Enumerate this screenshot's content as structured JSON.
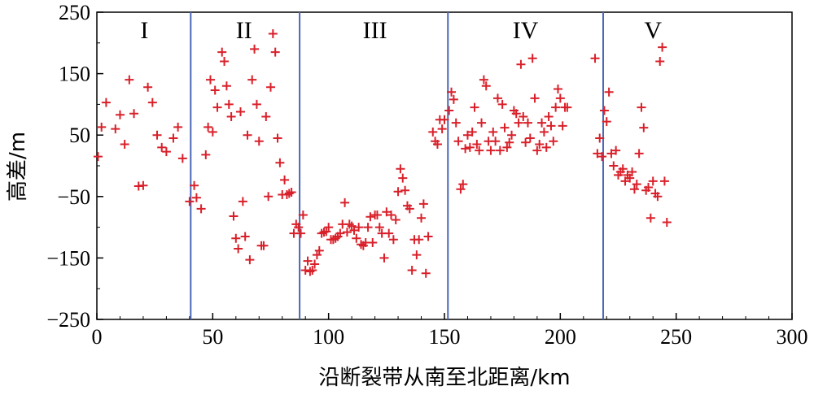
{
  "chart_data": {
    "type": "scatter",
    "xlabel": "沿断裂带从南至北距离/km",
    "ylabel": "高差/m",
    "xlim": [
      0,
      300
    ],
    "ylim": [
      -250,
      250
    ],
    "xticks": [
      "0",
      "50",
      "100",
      "150",
      "200",
      "250",
      "300"
    ],
    "yticks": [
      "250",
      "150",
      "50",
      "−50",
      "−150",
      "−250"
    ],
    "grid": false,
    "marker": "+",
    "marker_color": "#d9202a",
    "divider_color": "#4a67b8",
    "dividers": [
      40.5,
      87.5,
      151.5,
      218.5
    ],
    "regions": [
      {
        "label": "I",
        "x": 20.5
      },
      {
        "label": "II",
        "x": 63.5
      },
      {
        "label": "III",
        "x": 120
      },
      {
        "label": "IV",
        "x": 185
      },
      {
        "label": "V",
        "x": 240
      }
    ],
    "points": [
      [
        0.5,
        15
      ],
      [
        2,
        63
      ],
      [
        4,
        103
      ],
      [
        8,
        60
      ],
      [
        10,
        83
      ],
      [
        12,
        35
      ],
      [
        14,
        140
      ],
      [
        16,
        85
      ],
      [
        18,
        -33
      ],
      [
        20,
        -32
      ],
      [
        22,
        128
      ],
      [
        24,
        103
      ],
      [
        26,
        50
      ],
      [
        28,
        30
      ],
      [
        30,
        23
      ],
      [
        33,
        45
      ],
      [
        35,
        63
      ],
      [
        37,
        12
      ],
      [
        40,
        -58
      ],
      [
        42,
        -32
      ],
      [
        43,
        -52
      ],
      [
        45,
        -70
      ],
      [
        47,
        18
      ],
      [
        48,
        63
      ],
      [
        49,
        140
      ],
      [
        50,
        55
      ],
      [
        51,
        123
      ],
      [
        52,
        95
      ],
      [
        54,
        185
      ],
      [
        55,
        170
      ],
      [
        56,
        130
      ],
      [
        57,
        100
      ],
      [
        58,
        80
      ],
      [
        59,
        -82
      ],
      [
        60,
        -118
      ],
      [
        61,
        -135
      ],
      [
        62,
        88
      ],
      [
        63,
        -58
      ],
      [
        64,
        -115
      ],
      [
        65,
        50
      ],
      [
        66,
        -153
      ],
      [
        67,
        140
      ],
      [
        68,
        190
      ],
      [
        69,
        100
      ],
      [
        70,
        40
      ],
      [
        71,
        -130
      ],
      [
        72,
        -130
      ],
      [
        73,
        80
      ],
      [
        74,
        -50
      ],
      [
        75,
        128
      ],
      [
        76,
        215
      ],
      [
        77,
        185
      ],
      [
        78,
        45
      ],
      [
        79,
        5
      ],
      [
        80,
        -47
      ],
      [
        81,
        -23
      ],
      [
        82,
        -47
      ],
      [
        83,
        -45
      ],
      [
        84,
        -43
      ],
      [
        85,
        -110
      ],
      [
        86,
        -95
      ],
      [
        87,
        -100
      ],
      [
        88,
        -110
      ],
      [
        89,
        -80
      ],
      [
        90,
        -170
      ],
      [
        91,
        -155
      ],
      [
        92,
        -172
      ],
      [
        93,
        -170
      ],
      [
        94,
        -160
      ],
      [
        95,
        -145
      ],
      [
        96,
        -138
      ],
      [
        97,
        -110
      ],
      [
        98,
        -108
      ],
      [
        99,
        -107
      ],
      [
        100,
        -100
      ],
      [
        101,
        -120
      ],
      [
        102,
        -120
      ],
      [
        103,
        -118
      ],
      [
        104,
        -115
      ],
      [
        105,
        -110
      ],
      [
        106,
        -95
      ],
      [
        107,
        -60
      ],
      [
        108,
        -108
      ],
      [
        109,
        -95
      ],
      [
        110,
        -98
      ],
      [
        111,
        -105
      ],
      [
        112,
        -118
      ],
      [
        113,
        -100
      ],
      [
        114,
        -128
      ],
      [
        115,
        -130
      ],
      [
        116,
        -125
      ],
      [
        117,
        -100
      ],
      [
        118,
        -83
      ],
      [
        119,
        -125
      ],
      [
        120,
        -80
      ],
      [
        121,
        -80
      ],
      [
        122,
        -100
      ],
      [
        123,
        -110
      ],
      [
        124,
        -150
      ],
      [
        125,
        -75
      ],
      [
        126,
        -110
      ],
      [
        127,
        -80
      ],
      [
        128,
        -120
      ],
      [
        129,
        -88
      ],
      [
        130,
        -42
      ],
      [
        131,
        -5
      ],
      [
        132,
        -20
      ],
      [
        133,
        -40
      ],
      [
        134,
        -65
      ],
      [
        135,
        -70
      ],
      [
        136,
        -170
      ],
      [
        137,
        -120
      ],
      [
        138,
        -145
      ],
      [
        139,
        -120
      ],
      [
        140,
        -85
      ],
      [
        141,
        -62
      ],
      [
        142,
        -175
      ],
      [
        143,
        -115
      ],
      [
        145,
        55
      ],
      [
        146,
        40
      ],
      [
        147,
        35
      ],
      [
        148,
        75
      ],
      [
        149,
        60
      ],
      [
        150,
        75
      ],
      [
        152,
        90
      ],
      [
        153,
        120
      ],
      [
        154,
        108
      ],
      [
        155,
        70
      ],
      [
        156,
        40
      ],
      [
        157,
        -38
      ],
      [
        158,
        -30
      ],
      [
        159,
        28
      ],
      [
        160,
        50
      ],
      [
        161,
        30
      ],
      [
        162,
        55
      ],
      [
        163,
        95
      ],
      [
        164,
        35
      ],
      [
        165,
        25
      ],
      [
        166,
        70
      ],
      [
        167,
        140
      ],
      [
        168,
        130
      ],
      [
        169,
        40
      ],
      [
        170,
        25
      ],
      [
        171,
        55
      ],
      [
        172,
        40
      ],
      [
        173,
        110
      ],
      [
        174,
        25
      ],
      [
        175,
        100
      ],
      [
        176,
        62
      ],
      [
        177,
        30
      ],
      [
        178,
        38
      ],
      [
        179,
        50
      ],
      [
        180,
        90
      ],
      [
        181,
        85
      ],
      [
        182,
        70
      ],
      [
        183,
        165
      ],
      [
        184,
        80
      ],
      [
        185,
        38
      ],
      [
        186,
        70
      ],
      [
        187,
        45
      ],
      [
        188,
        175
      ],
      [
        189,
        110
      ],
      [
        190,
        25
      ],
      [
        191,
        35
      ],
      [
        192,
        70
      ],
      [
        193,
        55
      ],
      [
        194,
        30
      ],
      [
        195,
        80
      ],
      [
        196,
        65
      ],
      [
        197,
        40
      ],
      [
        198,
        95
      ],
      [
        199,
        125
      ],
      [
        200,
        110
      ],
      [
        201,
        65
      ],
      [
        202,
        95
      ],
      [
        203,
        95
      ],
      [
        215,
        175
      ],
      [
        216,
        20
      ],
      [
        217,
        45
      ],
      [
        218,
        15
      ],
      [
        219,
        90
      ],
      [
        220,
        72
      ],
      [
        221,
        120
      ],
      [
        222,
        20
      ],
      [
        223,
        0
      ],
      [
        224,
        25
      ],
      [
        225,
        -15
      ],
      [
        226,
        -10
      ],
      [
        227,
        -5
      ],
      [
        228,
        -25
      ],
      [
        229,
        -15
      ],
      [
        230,
        -20
      ],
      [
        231,
        -10
      ],
      [
        232,
        -38
      ],
      [
        233,
        -30
      ],
      [
        234,
        20
      ],
      [
        235,
        95
      ],
      [
        236,
        62
      ],
      [
        237,
        -40
      ],
      [
        238,
        -35
      ],
      [
        239,
        -85
      ],
      [
        240,
        -25
      ],
      [
        241,
        -45
      ],
      [
        242,
        -50
      ],
      [
        243,
        170
      ],
      [
        244,
        193
      ],
      [
        245,
        -25
      ],
      [
        246,
        -92
      ]
    ]
  }
}
